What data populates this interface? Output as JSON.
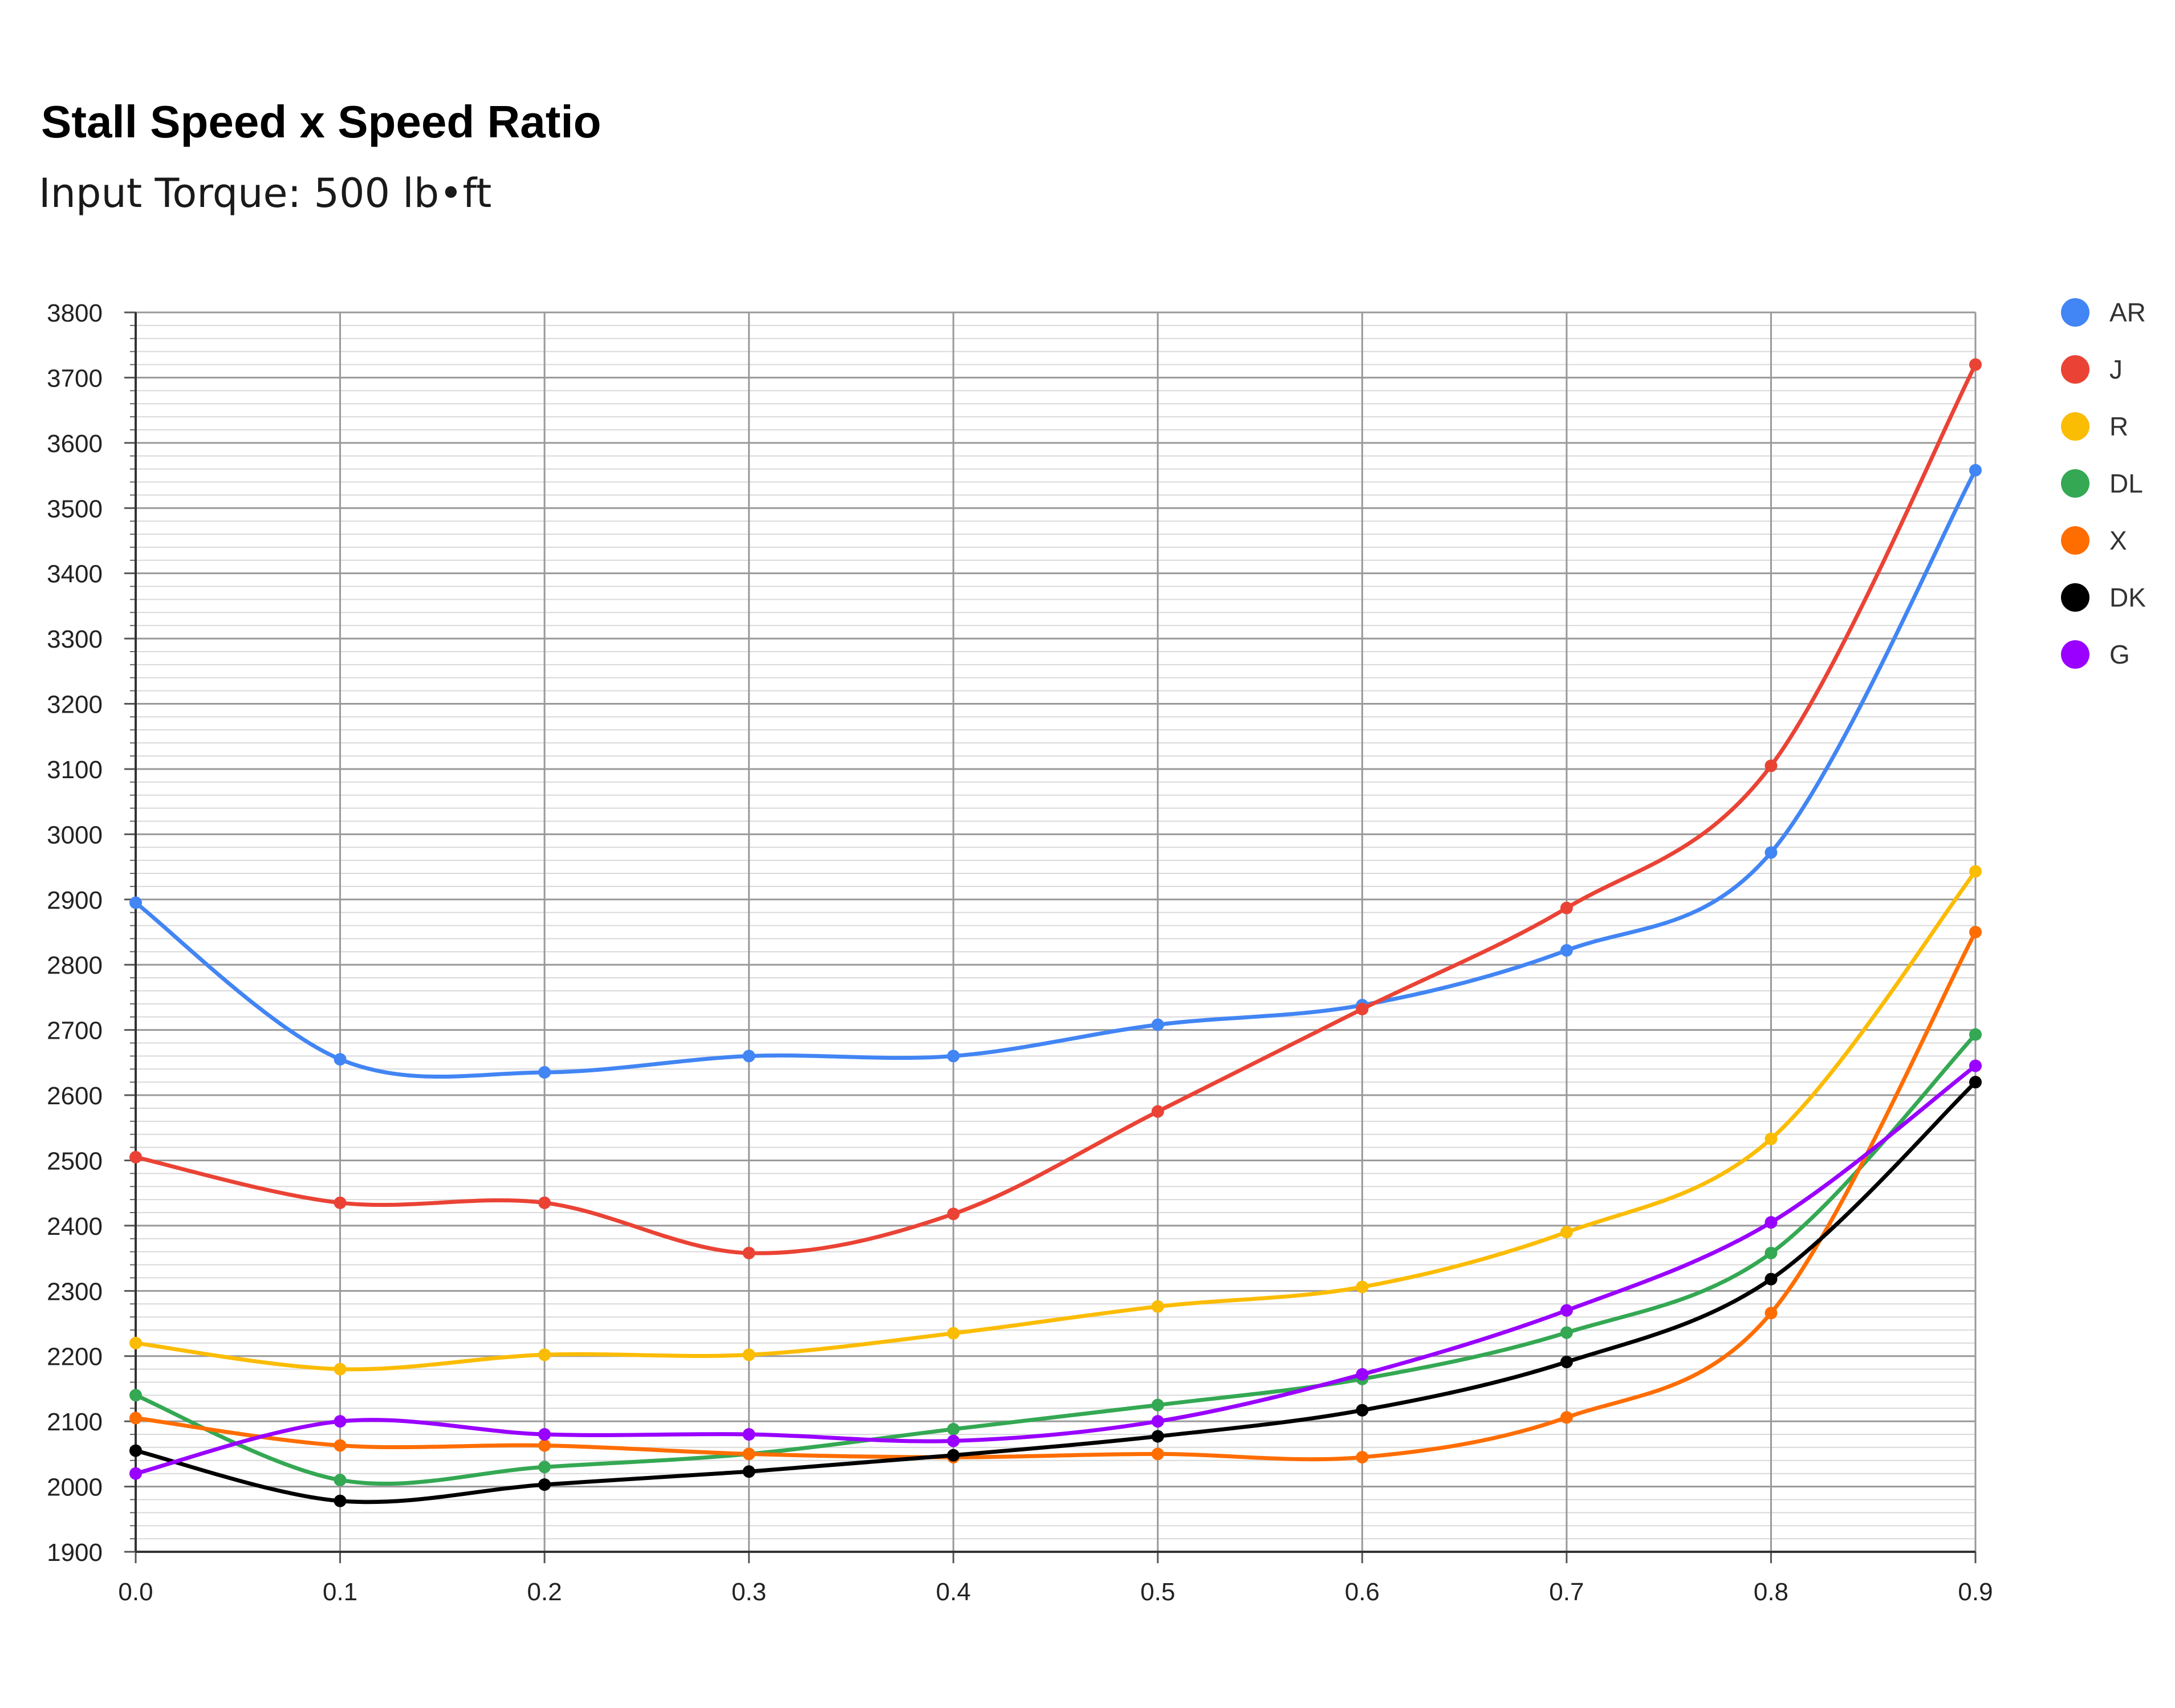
{
  "chart_data": {
    "type": "line",
    "title": "Stall Speed x Speed Ratio",
    "subtitle": "Input Torque: 500 lb•ft",
    "xlabel": "",
    "ylabel": "",
    "x": [
      0.0,
      0.1,
      0.2,
      0.3,
      0.4,
      0.5,
      0.6,
      0.7,
      0.8,
      0.9
    ],
    "x_tick_labels": [
      "0.0",
      "0.1",
      "0.2",
      "0.3",
      "0.4",
      "0.5",
      "0.6",
      "0.7",
      "0.8",
      "0.9"
    ],
    "xlim": [
      0.0,
      0.9
    ],
    "ylim": [
      1900,
      3800
    ],
    "y_ticks": [
      1900,
      2000,
      2100,
      2200,
      2300,
      2400,
      2500,
      2600,
      2700,
      2800,
      2900,
      3000,
      3100,
      3200,
      3300,
      3400,
      3500,
      3600,
      3700,
      3800
    ],
    "grid": true,
    "legend_position": "right",
    "series": [
      {
        "name": "AR",
        "color": "#4285f4",
        "values": [
          2895,
          2655,
          2635,
          2660,
          2660,
          2708,
          2738,
          2822,
          2972,
          3558
        ]
      },
      {
        "name": "J",
        "color": "#ea4335",
        "values": [
          2505,
          2435,
          2435,
          2358,
          2418,
          2575,
          2732,
          2887,
          3105,
          3720
        ]
      },
      {
        "name": "R",
        "color": "#fbbc04",
        "values": [
          2220,
          2180,
          2202,
          2202,
          2235,
          2276,
          2306,
          2390,
          2533,
          2943
        ]
      },
      {
        "name": "DL",
        "color": "#34a853",
        "values": [
          2140,
          2010,
          2030,
          2050,
          2088,
          2125,
          2165,
          2236,
          2358,
          2693
        ]
      },
      {
        "name": "X",
        "color": "#ff6d01",
        "values": [
          2105,
          2063,
          2063,
          2050,
          2045,
          2050,
          2045,
          2106,
          2266,
          2850
        ]
      },
      {
        "name": "DK",
        "color": "#000000",
        "values": [
          2055,
          1978,
          2003,
          2023,
          2048,
          2077,
          2117,
          2191,
          2318,
          2620
        ]
      },
      {
        "name": "G",
        "color": "#9900ff",
        "values": [
          2020,
          2100,
          2080,
          2080,
          2070,
          2100,
          2172,
          2270,
          2405,
          2645
        ]
      }
    ]
  }
}
